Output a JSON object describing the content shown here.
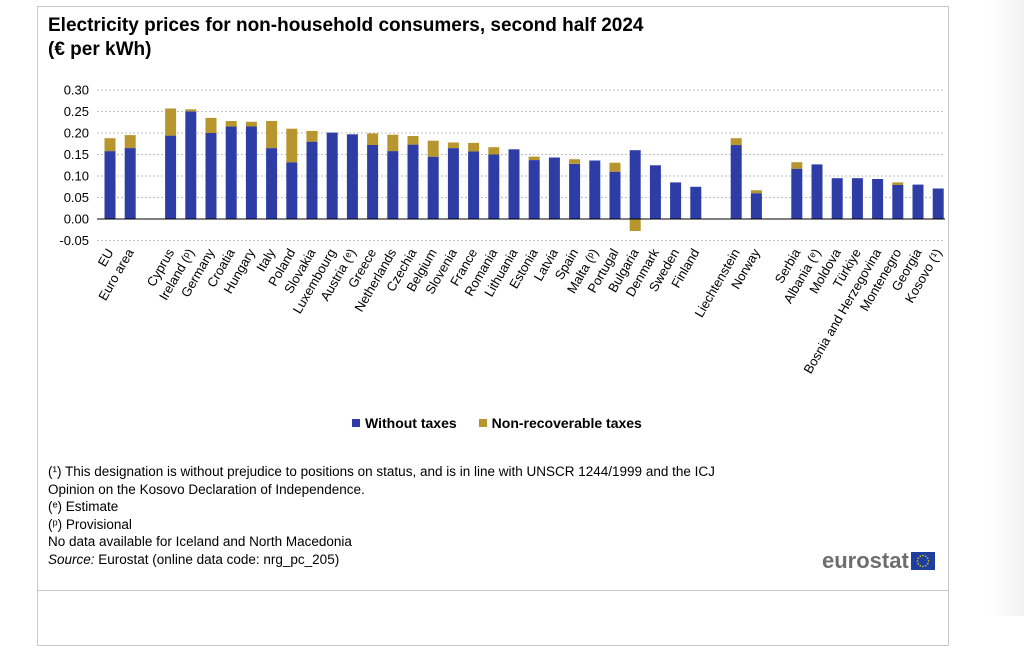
{
  "title": {
    "line1": "Electricity prices for non-household consumers, second half 2024",
    "line2": "(€ per kWh)"
  },
  "legend": {
    "without_taxes": "Without taxes",
    "non_recoverable": "Non-recoverable taxes"
  },
  "colors": {
    "without_taxes": "#2E3DA6",
    "non_recoverable": "#B8962E",
    "grid": "#bfbfbf",
    "axis": "#000000"
  },
  "notes": {
    "n1a": "(¹) This designation is without  prejudice to positions on status, and is in line with UNSCR 1244/1999 and the ICJ",
    "n1b": "Opinion on the Kosovo Declaration of Independence.",
    "n2": "(ᵉ) Estimate",
    "n3": "(ᵖ) Provisional",
    "n4": "No data available for Iceland and North Macedonia",
    "source_label": "Source:",
    "source_text": " Eurostat (online data code: nrg_pc_205)"
  },
  "logo": {
    "text": "eurostat",
    "flag_icon": "eu-flag-icon"
  },
  "chart_data": {
    "type": "bar",
    "stacked": true,
    "title": "Electricity prices for non-household consumers, second half 2024 (€ per kWh)",
    "xlabel": "",
    "ylabel": "",
    "ylim": [
      -0.05,
      0.3
    ],
    "yticks": [
      "0.30",
      "0.25",
      "0.20",
      "0.15",
      "0.10",
      "0.05",
      "0.00",
      "-0.05"
    ],
    "ytick_values": [
      0.3,
      0.25,
      0.2,
      0.15,
      0.1,
      0.05,
      0.0,
      -0.05
    ],
    "grid": true,
    "legend_position": "bottom",
    "groups": [
      [
        "EU",
        "Euro area"
      ],
      [
        "Cyprus",
        "Ireland (ᵖ)",
        "Germany",
        "Croatia",
        "Hungary",
        "Italy",
        "Poland",
        "Slovakia",
        "Luxembourg",
        "Austria (ᵉ)",
        "Greece",
        "Netherlands",
        "Czechia",
        "Belgium",
        "Slovenia",
        "France",
        "Romania",
        "Lithuania",
        "Estonia",
        "Latvia",
        "Spain",
        "Malta (ᵖ)",
        "Portugal",
        "Bulgaria",
        "Denmark",
        "Sweden",
        "Finland"
      ],
      [
        "Liechtenstein",
        "Norway"
      ],
      [
        "Serbia",
        "Albania (ᵉ)",
        "Moldova",
        "Türkiye",
        "Bosnia and Herzegovina",
        "Montenegro",
        "Georgia",
        "Kosovo (¹)"
      ]
    ],
    "categories": [
      "EU",
      "Euro area",
      "Cyprus",
      "Ireland (ᵖ)",
      "Germany",
      "Croatia",
      "Hungary",
      "Italy",
      "Poland",
      "Slovakia",
      "Luxembourg",
      "Austria (ᵉ)",
      "Greece",
      "Netherlands",
      "Czechia",
      "Belgium",
      "Slovenia",
      "France",
      "Romania",
      "Lithuania",
      "Estonia",
      "Latvia",
      "Spain",
      "Malta (ᵖ)",
      "Portugal",
      "Bulgaria",
      "Denmark",
      "Sweden",
      "Finland",
      "Liechtenstein",
      "Norway",
      "Serbia",
      "Albania (ᵉ)",
      "Moldova",
      "Türkiye",
      "Bosnia and Herzegovina",
      "Montenegro",
      "Georgia",
      "Kosovo (¹)"
    ],
    "series": [
      {
        "name": "Without taxes",
        "values": [
          0.158,
          0.165,
          0.194,
          0.25,
          0.2,
          0.215,
          0.215,
          0.165,
          0.132,
          0.18,
          0.201,
          0.197,
          0.172,
          0.158,
          0.173,
          0.145,
          0.165,
          0.157,
          0.15,
          0.162,
          0.137,
          0.143,
          0.128,
          0.136,
          0.11,
          0.16,
          0.125,
          0.085,
          0.075,
          0.172,
          0.06,
          0.117,
          0.127,
          0.095,
          0.095,
          0.093,
          0.079,
          0.08,
          0.071
        ]
      },
      {
        "name": "Non-recoverable taxes",
        "values": [
          0.03,
          0.03,
          0.063,
          0.005,
          0.035,
          0.013,
          0.011,
          0.063,
          0.078,
          0.025,
          0.0,
          0.0,
          0.027,
          0.038,
          0.02,
          0.037,
          0.013,
          0.02,
          0.017,
          0.0,
          0.008,
          0.0,
          0.011,
          0.0,
          0.021,
          -0.028,
          0.0,
          0.0,
          0.0,
          0.016,
          0.007,
          0.015,
          0.0,
          0.0,
          0.0,
          0.0,
          0.006,
          0.0,
          0.0
        ]
      }
    ]
  }
}
